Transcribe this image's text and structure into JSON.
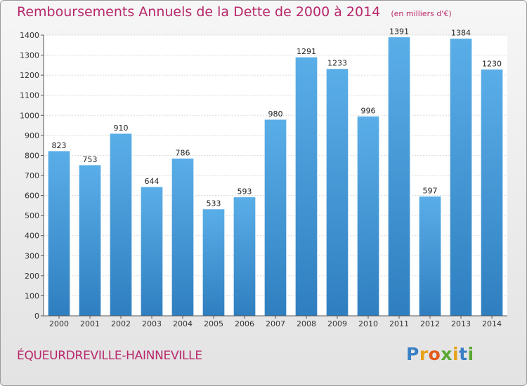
{
  "title": "Remboursements Annuels de la Dette de 2000 à 2014",
  "unit": "(en milliers d'€)",
  "location": "ÉQUEURDREVILLE-HAINNEVILLE",
  "brand": {
    "letters": [
      "P",
      "r",
      "o",
      "x",
      "i",
      "t",
      "i"
    ],
    "colors": [
      "#3a7fc4",
      "#e8a21a",
      "#e25b1b",
      "#5aa832",
      "#e8a21a",
      "#3a7fc4",
      "#5aa832"
    ]
  },
  "colors": {
    "bar_light": "#5aaee8",
    "bar_dark": "#2f7fc0",
    "accent": "#b8286b"
  },
  "chart_data": {
    "type": "bar",
    "categories": [
      "2000",
      "2001",
      "2002",
      "2003",
      "2004",
      "2005",
      "2006",
      "2007",
      "2008",
      "2009",
      "2010",
      "2011",
      "2012",
      "2013",
      "2014"
    ],
    "values": [
      823,
      753,
      910,
      644,
      786,
      533,
      593,
      980,
      1291,
      1233,
      996,
      1391,
      597,
      1384,
      1230
    ],
    "ylim": [
      0,
      1400
    ],
    "yticks": [
      0,
      100,
      200,
      300,
      400,
      500,
      600,
      700,
      800,
      900,
      1000,
      1100,
      1200,
      1300,
      1400
    ],
    "grid": true
  }
}
